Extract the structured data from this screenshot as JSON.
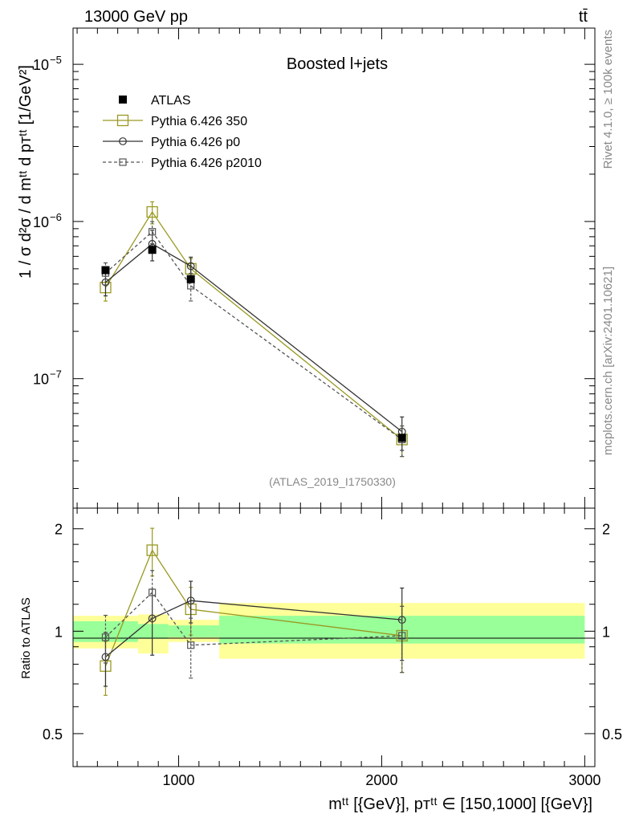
{
  "header": {
    "left": "13000 GeV pp",
    "right": "tt̄"
  },
  "side_labels": {
    "rivet": "Rivet 4.1.0, ≥ 100k events",
    "mcplots": "mcplots.cern.ch [arXiv:2401.10621]"
  },
  "chart_data": {
    "type": "line",
    "title": "Boosted l+jets",
    "analysis_id": "(ATLAS_2019_I1750330)",
    "ylabel": "1 / σ d²σ / d mᵗᵗ d pᴛᵗᵗ [1/GeV²]",
    "ratio_ylabel": "Ratio to ATLAS",
    "xlabel": "mᵗᵗ [{GeV}], pᴛᵗᵗ ∈ [150,1000] [{GeV}]",
    "xlim": [
      480,
      3050
    ],
    "ylim": [
      1.5e-08,
      1.7e-05
    ],
    "ratio_ylim": [
      0.4,
      2.3
    ],
    "x_ticks": [
      {
        "value": 1000,
        "label": "1000"
      },
      {
        "value": 2000,
        "label": "2000"
      },
      {
        "value": 3000,
        "label": "3000"
      }
    ],
    "y_ticks": [
      {
        "value": 1e-05,
        "label": "10",
        "exp": "−5"
      },
      {
        "value": 1e-06,
        "label": "10",
        "exp": "−6"
      },
      {
        "value": 1e-07,
        "label": "10",
        "exp": "−7"
      }
    ],
    "ratio_ticks": [
      {
        "value": 2,
        "label": "2"
      },
      {
        "value": 1,
        "label": "1"
      },
      {
        "value": 0.5,
        "label": "0.5"
      }
    ],
    "bins": [
      {
        "lo": 480,
        "hi": 800
      },
      {
        "lo": 800,
        "hi": 950
      },
      {
        "lo": 950,
        "hi": 1200
      },
      {
        "lo": 1200,
        "hi": 3000
      }
    ],
    "x": [
      640,
      870,
      1060,
      2100
    ],
    "bands": {
      "stat": [
        [
          0.93,
          1.07
        ],
        [
          0.95,
          1.05
        ],
        [
          0.96,
          1.04
        ],
        [
          0.92,
          1.11
        ]
      ],
      "total": [
        [
          0.89,
          1.11
        ],
        [
          0.86,
          1.12
        ],
        [
          0.93,
          1.08
        ],
        [
          0.83,
          1.21
        ]
      ]
    },
    "series": [
      {
        "name": "ATLAS",
        "color": "#000000",
        "marker": "filled-square",
        "line": "none",
        "values": [
          4.9e-07,
          6.6e-07,
          4.3e-07,
          4.2e-08
        ]
      },
      {
        "name": "Pythia 6.426 350",
        "color": "#999922",
        "marker": "open-square-large",
        "line": "solid",
        "values": [
          3.8e-07,
          1.15e-06,
          5e-07,
          4.1e-08
        ],
        "err": [
          0.18,
          0.16,
          0.16,
          0.22
        ],
        "ratio": [
          0.79,
          1.73,
          1.16,
          0.97
        ]
      },
      {
        "name": "Pythia 6.426 p0",
        "color": "#333333",
        "marker": "open-circle",
        "line": "solid",
        "values": [
          4.1e-07,
          7.2e-07,
          5.2e-07,
          4.6e-08
        ],
        "err": [
          0.18,
          0.22,
          0.14,
          0.24
        ],
        "ratio": [
          0.84,
          1.09,
          1.23,
          1.08
        ]
      },
      {
        "name": "Pythia 6.426 p2010",
        "color": "#555555",
        "marker": "open-square-small",
        "line": "dashed",
        "values": [
          4.7e-07,
          8.6e-07,
          3.9e-07,
          4.1e-08
        ],
        "err": [
          0.16,
          0.16,
          0.2,
          0.22
        ],
        "ratio": [
          0.96,
          1.3,
          0.91,
          0.97
        ]
      }
    ]
  }
}
